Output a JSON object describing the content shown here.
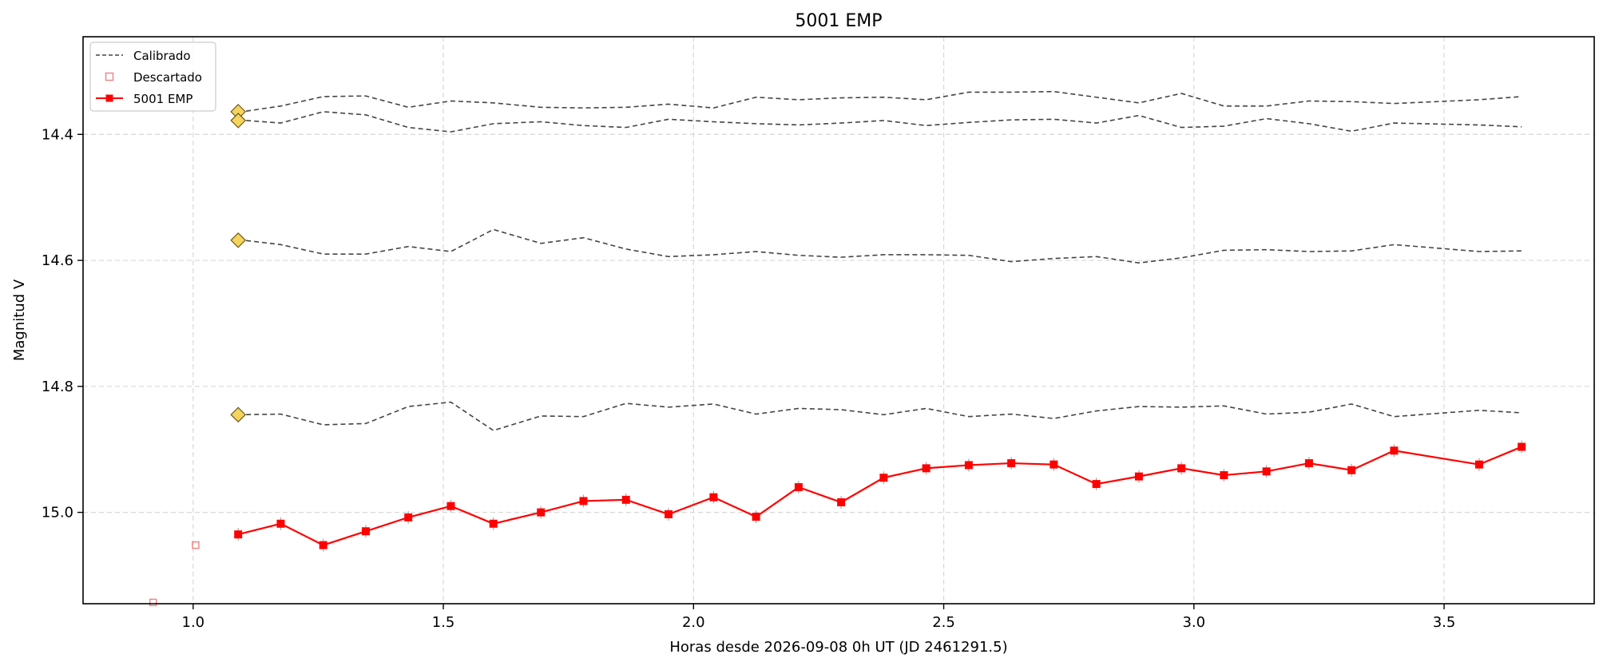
{
  "chart_data": {
    "type": "line",
    "title": "5001 EMP",
    "xlabel": "Horas desde 2026-09-08 0h UT (JD 2461291.5)",
    "ylabel": "Magnitud V",
    "xlim": [
      0.78,
      3.8
    ],
    "ylim": [
      15.145,
      14.245
    ],
    "y_inverted": true,
    "grid": true,
    "legend_position": "top-left",
    "x_ticks": [
      "1.0",
      "1.5",
      "2.0",
      "2.5",
      "3.0",
      "3.5"
    ],
    "y_ticks": [
      "14.4",
      "14.6",
      "14.8",
      "15.0"
    ],
    "legend": [
      "Calibrado",
      "Descartado",
      "5001 EMP"
    ],
    "x": [
      1.09,
      1.175,
      1.26,
      1.345,
      1.43,
      1.515,
      1.6,
      1.695,
      1.78,
      1.865,
      1.95,
      2.04,
      2.125,
      2.21,
      2.295,
      2.38,
      2.465,
      2.55,
      2.635,
      2.72,
      2.805,
      2.89,
      2.975,
      3.06,
      3.145,
      3.23,
      3.315,
      3.4,
      3.57,
      3.655
    ],
    "series": [
      {
        "name": "5001 EMP",
        "color": "#ff0000",
        "values": [
          15.035,
          15.018,
          15.052,
          15.03,
          15.008,
          14.99,
          15.018,
          15.0,
          14.982,
          14.98,
          15.003,
          14.976,
          15.007,
          14.96,
          14.984,
          14.945,
          14.93,
          14.925,
          14.922,
          14.924,
          14.955,
          14.943,
          14.93,
          14.941,
          14.935,
          14.922,
          14.933,
          14.902,
          14.924,
          14.896
        ]
      }
    ],
    "calibrated_series": [
      {
        "color": "#444444",
        "values": [
          14.365,
          14.355,
          14.34,
          14.339,
          14.357,
          14.347,
          14.35,
          14.357,
          14.358,
          14.357,
          14.352,
          14.358,
          14.341,
          14.345,
          14.342,
          14.341,
          14.345,
          14.333,
          14.333,
          14.332,
          14.341,
          14.35,
          14.335,
          14.355,
          14.355,
          14.347,
          14.348,
          14.351,
          14.345,
          14.34
        ]
      },
      {
        "color": "#444444",
        "values": [
          14.377,
          14.382,
          14.364,
          14.369,
          14.389,
          14.396,
          14.383,
          14.38,
          14.386,
          14.389,
          14.376,
          14.38,
          14.383,
          14.385,
          14.382,
          14.378,
          14.386,
          14.381,
          14.377,
          14.376,
          14.382,
          14.37,
          14.389,
          14.387,
          14.375,
          14.383,
          14.395,
          14.382,
          14.385,
          14.388
        ]
      },
      {
        "color": "#444444",
        "values": [
          14.567,
          14.575,
          14.59,
          14.59,
          14.578,
          14.586,
          14.551,
          14.573,
          14.564,
          14.582,
          14.594,
          14.591,
          14.586,
          14.592,
          14.595,
          14.591,
          14.591,
          14.592,
          14.602,
          14.597,
          14.594,
          14.604,
          14.596,
          14.584,
          14.583,
          14.586,
          14.585,
          14.575,
          14.586,
          14.585
        ]
      },
      {
        "color": "#444444",
        "values": [
          14.845,
          14.844,
          14.861,
          14.859,
          14.832,
          14.825,
          14.87,
          14.847,
          14.848,
          14.827,
          14.833,
          14.828,
          14.844,
          14.835,
          14.837,
          14.845,
          14.835,
          14.848,
          14.844,
          14.851,
          14.839,
          14.832,
          14.833,
          14.831,
          14.844,
          14.841,
          14.828,
          14.848,
          14.838,
          14.842
        ]
      }
    ],
    "reference_markers": {
      "color": "#f4d35e",
      "x": [
        1.09,
        1.09,
        1.09,
        1.09
      ],
      "values": [
        14.364,
        14.378,
        14.568,
        14.845
      ]
    },
    "discarded": {
      "color": "#f08080",
      "x": [
        0.92,
        1.005
      ],
      "values": [
        15.143,
        15.052
      ]
    }
  }
}
